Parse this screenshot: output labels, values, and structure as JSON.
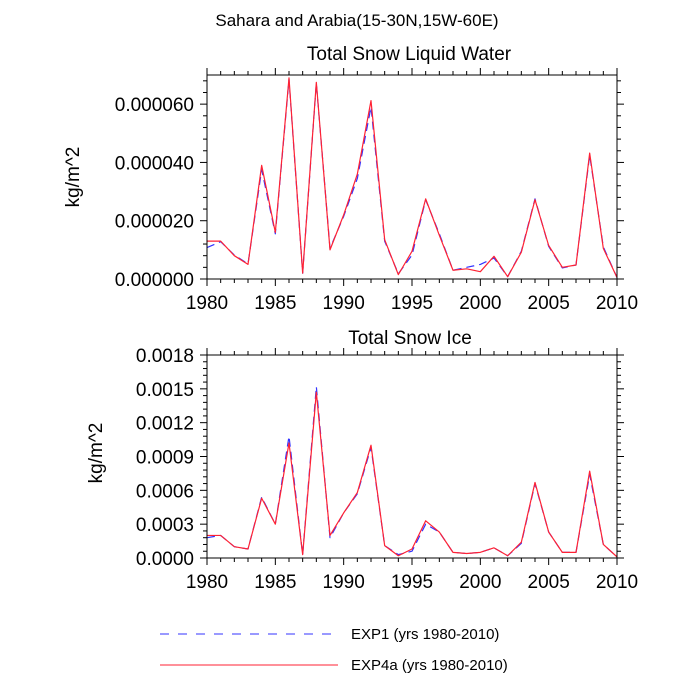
{
  "figure_title": "Sahara and Arabia(15-30N,15W-60E)",
  "colors": {
    "exp1": "#3333ff",
    "exp4a": "#ff2233",
    "axis": "#000000"
  },
  "legend": [
    {
      "label": "EXP1 (yrs 1980-2010)",
      "style": "dashed",
      "color": "#3333ff"
    },
    {
      "label": "EXP4a (yrs 1980-2010)",
      "style": "solid",
      "color": "#ff2233"
    }
  ],
  "chart_data": [
    {
      "type": "line",
      "title": "Total Snow Liquid Water",
      "xlabel": "",
      "ylabel": "kg/m^2",
      "xlim": [
        1980,
        2010
      ],
      "ylim": [
        0,
        7e-05
      ],
      "xticks": [
        1980,
        1985,
        1990,
        1995,
        2000,
        2005,
        2010
      ],
      "yticks": [
        0,
        2e-05,
        4e-05,
        6e-05
      ],
      "ytick_labels": [
        "0.000000",
        "0.000020",
        "0.000040",
        "0.000060"
      ],
      "x": [
        1980,
        1981,
        1982,
        1983,
        1984,
        1985,
        1986,
        1987,
        1988,
        1989,
        1990,
        1991,
        1992,
        1993,
        1994,
        1995,
        1996,
        1997,
        1998,
        1999,
        2000,
        2001,
        2002,
        2003,
        2004,
        2005,
        2006,
        2007,
        2008,
        2009,
        2010
      ],
      "series": [
        {
          "name": "EXP1 (yrs 1980-2010)",
          "style": "dashed",
          "values": [
            1.08e-05,
            1.28e-05,
            8.2e-06,
            5.2e-06,
            3.75e-05,
            1.55e-05,
            6.85e-05,
            2e-06,
            6.72e-05,
            1.05e-05,
            2.15e-05,
            3.45e-05,
            5.9e-05,
            1.3e-05,
            1.8e-06,
            8.2e-06,
            2.72e-05,
            1.55e-05,
            3e-06,
            4e-06,
            5e-06,
            7.2e-06,
            8e-07,
            9.5e-06,
            2.75e-05,
            1.12e-05,
            3.8e-06,
            4.8e-06,
            4.25e-05,
            1.1e-05,
            5e-07
          ]
        },
        {
          "name": "EXP4a (yrs 1980-2010)",
          "style": "solid",
          "values": [
            1.3e-05,
            1.3e-05,
            8e-06,
            5e-06,
            3.9e-05,
            1.6e-05,
            6.9e-05,
            2e-06,
            6.75e-05,
            1e-05,
            2.2e-05,
            3.6e-05,
            6.12e-05,
            1.35e-05,
            1.5e-06,
            9.5e-06,
            2.75e-05,
            1.5e-05,
            3e-06,
            3.5e-06,
            2.5e-06,
            7.8e-06,
            8e-07,
            9.2e-06,
            2.72e-05,
            1.15e-05,
            4e-06,
            4.8e-06,
            4.32e-05,
            1.05e-05,
            5e-07
          ]
        }
      ]
    },
    {
      "type": "line",
      "title": "Total Snow Ice",
      "xlabel": "",
      "ylabel": "kg/m^2",
      "xlim": [
        1980,
        2010
      ],
      "ylim": [
        0,
        0.0018
      ],
      "xticks": [
        1980,
        1985,
        1990,
        1995,
        2000,
        2005,
        2010
      ],
      "yticks": [
        0,
        0.0003,
        0.0006,
        0.0009,
        0.0012,
        0.0015,
        0.0018
      ],
      "ytick_labels": [
        "0.0000",
        "0.0003",
        "0.0006",
        "0.0009",
        "0.0012",
        "0.0015",
        "0.0018"
      ],
      "x": [
        1980,
        1981,
        1982,
        1983,
        1984,
        1985,
        1986,
        1987,
        1988,
        1989,
        1990,
        1991,
        1992,
        1993,
        1994,
        1995,
        1996,
        1997,
        1998,
        1999,
        2000,
        2001,
        2002,
        2003,
        2004,
        2005,
        2006,
        2007,
        2008,
        2009,
        2010
      ],
      "series": [
        {
          "name": "EXP1 (yrs 1980-2010)",
          "style": "dashed",
          "values": [
            0.00018,
            0.0002,
            0.0001,
            8e-05,
            0.00054,
            0.0003,
            0.00108,
            3e-05,
            0.00152,
            0.00018,
            0.0004,
            0.00057,
            0.00098,
            0.00011,
            3e-05,
            6e-05,
            0.0003,
            0.00023,
            5e-05,
            4e-05,
            5e-05,
            9e-05,
            2e-05,
            0.00013,
            0.00066,
            0.00023,
            5e-05,
            5e-05,
            0.00074,
            0.00012,
            1e-05
          ]
        },
        {
          "name": "EXP4a (yrs 1980-2010)",
          "style": "solid",
          "values": [
            0.0002,
            0.0002,
            0.0001,
            8e-05,
            0.00053,
            0.0003,
            0.00102,
            3e-05,
            0.00147,
            0.0002,
            0.0004,
            0.00058,
            0.001,
            0.00011,
            2e-05,
            8e-05,
            0.00033,
            0.00023,
            5e-05,
            4e-05,
            5e-05,
            9e-05,
            2e-05,
            0.00014,
            0.00067,
            0.00023,
            5e-05,
            5e-05,
            0.00077,
            0.00012,
            1e-05
          ]
        }
      ]
    }
  ]
}
